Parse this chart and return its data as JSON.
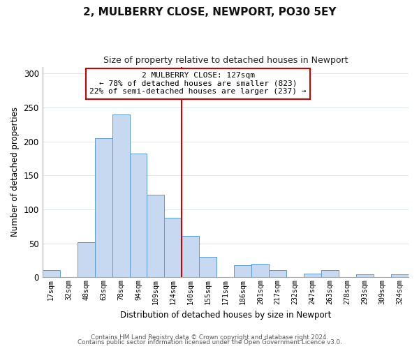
{
  "title": "2, MULBERRY CLOSE, NEWPORT, PO30 5EY",
  "subtitle": "Size of property relative to detached houses in Newport",
  "xlabel": "Distribution of detached houses by size in Newport",
  "ylabel": "Number of detached properties",
  "bar_labels": [
    "17sqm",
    "32sqm",
    "48sqm",
    "63sqm",
    "78sqm",
    "94sqm",
    "109sqm",
    "124sqm",
    "140sqm",
    "155sqm",
    "171sqm",
    "186sqm",
    "201sqm",
    "217sqm",
    "232sqm",
    "247sqm",
    "263sqm",
    "278sqm",
    "293sqm",
    "309sqm",
    "324sqm"
  ],
  "bar_heights": [
    11,
    0,
    52,
    205,
    240,
    182,
    122,
    88,
    61,
    30,
    0,
    18,
    20,
    11,
    0,
    6,
    11,
    0,
    4,
    0,
    5
  ],
  "bar_color": "#c6d9f0",
  "bar_edge_color": "#5b9bd5",
  "vline_x_index": 7.5,
  "vline_color": "#cc0000",
  "ylim": [
    0,
    310
  ],
  "yticks": [
    0,
    50,
    100,
    150,
    200,
    250,
    300
  ],
  "annotation_title": "2 MULBERRY CLOSE: 127sqm",
  "annotation_line1": "← 78% of detached houses are smaller (823)",
  "annotation_line2": "22% of semi-detached houses are larger (237) →",
  "annotation_box_color": "#ffffff",
  "annotation_box_edge": "#cc0000",
  "footer1": "Contains HM Land Registry data © Crown copyright and database right 2024.",
  "footer2": "Contains public sector information licensed under the Open Government Licence v3.0.",
  "background_color": "#ffffff",
  "grid_color": "#dde8f0"
}
